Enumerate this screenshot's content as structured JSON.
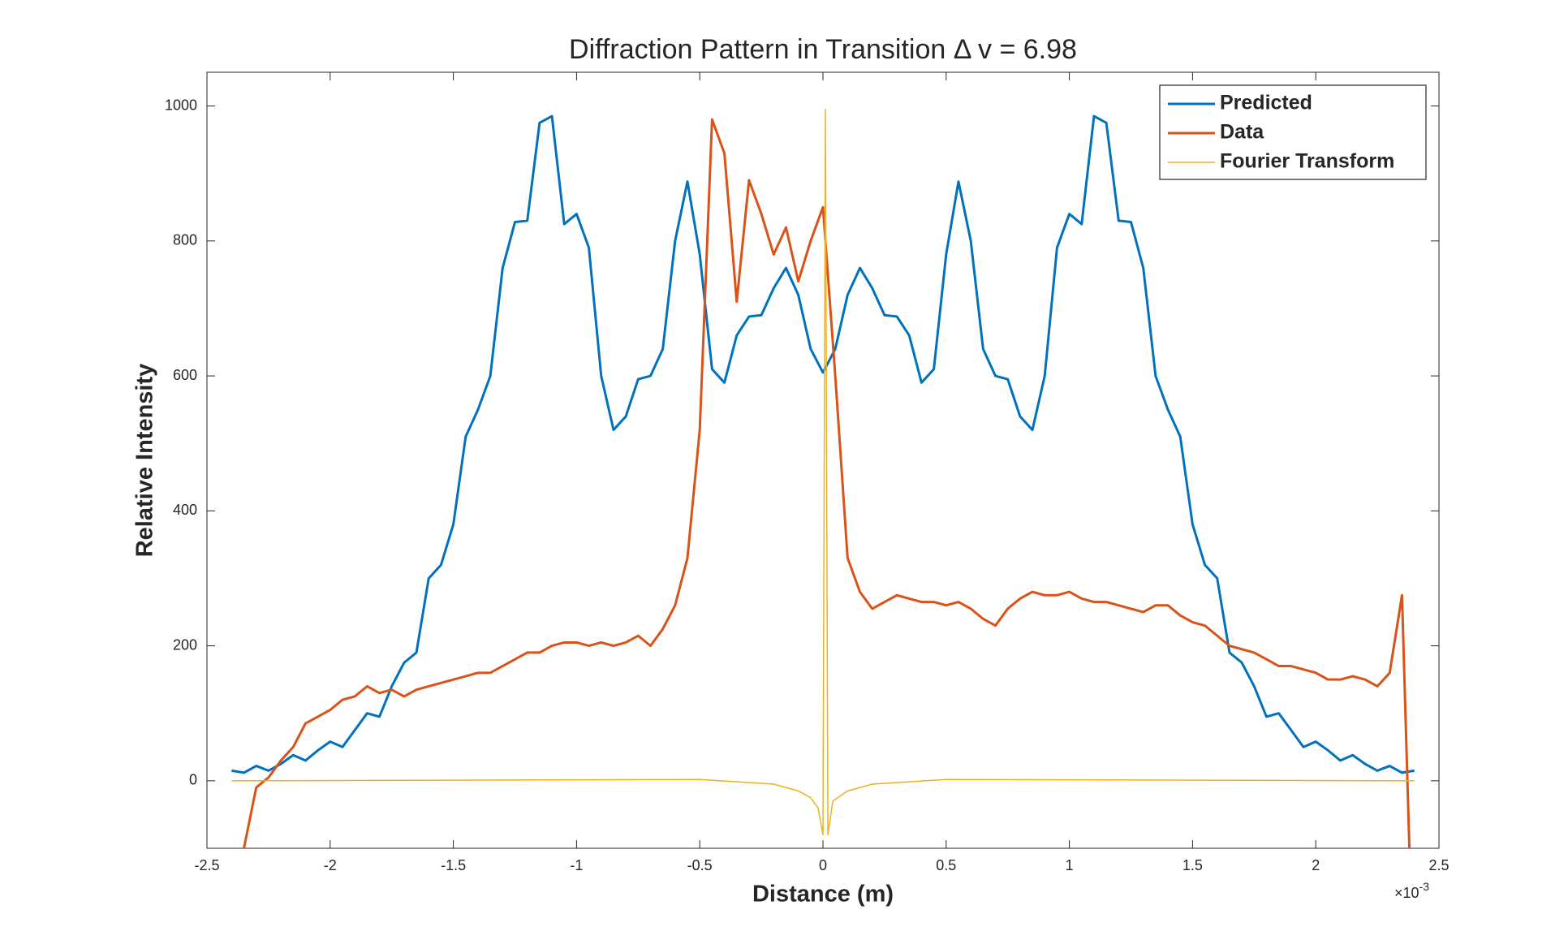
{
  "chart_data": {
    "type": "line",
    "title": "Diffraction Pattern in Transition Δ v = 6.98",
    "x_label": "Distance (m)",
    "y_label": "Relative Intensity",
    "x_multiplier": {
      "base": "×10",
      "exponent": "-3"
    },
    "xlim": [
      -2.5,
      2.5
    ],
    "xticks": [
      -2.5,
      -2,
      -1.5,
      -1,
      -0.5,
      0,
      0.5,
      1,
      1.5,
      2,
      2.5
    ],
    "ylim": [
      -100,
      1050
    ],
    "yticks": [
      0,
      200,
      400,
      600,
      800,
      1000
    ],
    "grid": false,
    "legend": "top-right",
    "series": [
      {
        "name": "Predicted",
        "color": "#0072BD",
        "width": 3,
        "x": [
          -2.4,
          -2.35,
          -2.3,
          -2.25,
          -2.2,
          -2.15,
          -2.1,
          -2.05,
          -2,
          -1.95,
          -1.9,
          -1.85,
          -1.8,
          -1.75,
          -1.7,
          -1.65,
          -1.6,
          -1.55,
          -1.5,
          -1.45,
          -1.4,
          -1.35,
          -1.3,
          -1.25,
          -1.2,
          -1.15,
          -1.1,
          -1.05,
          -1,
          -0.95,
          -0.9,
          -0.85,
          -0.8,
          -0.75,
          -0.7,
          -0.65,
          -0.6,
          -0.55,
          -0.5,
          -0.45,
          -0.4,
          -0.35,
          -0.3,
          -0.25,
          -0.2,
          -0.15,
          -0.1,
          -0.05,
          0,
          0.05,
          0.1,
          0.15,
          0.2,
          0.25,
          0.3,
          0.35,
          0.4,
          0.45,
          0.5,
          0.55,
          0.6,
          0.65,
          0.7,
          0.75,
          0.8,
          0.85,
          0.9,
          0.95,
          1,
          1.05,
          1.1,
          1.15,
          1.2,
          1.25,
          1.3,
          1.35,
          1.4,
          1.45,
          1.5,
          1.55,
          1.6,
          1.65,
          1.7,
          1.75,
          1.8,
          1.85,
          1.9,
          1.95,
          2,
          2.05,
          2.1,
          2.15,
          2.2,
          2.25,
          2.3,
          2.35,
          2.4
        ],
        "values": [
          15,
          12,
          22,
          15,
          25,
          38,
          30,
          45,
          58,
          50,
          75,
          100,
          95,
          140,
          175,
          190,
          300,
          320,
          380,
          510,
          550,
          600,
          760,
          828,
          830,
          975,
          985,
          825,
          840,
          790,
          600,
          520,
          540,
          595,
          600,
          640,
          800,
          888,
          780,
          610,
          590,
          660,
          688,
          690,
          730,
          760,
          720,
          640,
          605,
          640,
          720,
          760,
          730,
          690,
          688,
          660,
          590,
          610,
          780,
          888,
          800,
          640,
          600,
          595,
          540,
          520,
          600,
          790,
          840,
          825,
          985,
          975,
          830,
          828,
          760,
          600,
          550,
          510,
          380,
          320,
          300,
          190,
          175,
          140,
          95,
          100,
          75,
          50,
          58,
          45,
          30,
          38,
          25,
          15,
          22,
          12,
          15
        ]
      },
      {
        "name": "Data",
        "color": "#D95319",
        "width": 3,
        "x": [
          -2.35,
          -2.3,
          -2.25,
          -2.2,
          -2.15,
          -2.1,
          -2.05,
          -2,
          -1.95,
          -1.9,
          -1.85,
          -1.8,
          -1.75,
          -1.7,
          -1.65,
          -1.6,
          -1.55,
          -1.5,
          -1.45,
          -1.4,
          -1.35,
          -1.3,
          -1.25,
          -1.2,
          -1.15,
          -1.1,
          -1.05,
          -1,
          -0.95,
          -0.9,
          -0.85,
          -0.8,
          -0.75,
          -0.7,
          -0.65,
          -0.6,
          -0.55,
          -0.5,
          -0.45,
          -0.4,
          -0.35,
          -0.3,
          -0.25,
          -0.2,
          -0.15,
          -0.1,
          -0.05,
          0,
          0.05,
          0.1,
          0.15,
          0.2,
          0.25,
          0.3,
          0.35,
          0.4,
          0.45,
          0.5,
          0.55,
          0.6,
          0.65,
          0.7,
          0.75,
          0.8,
          0.85,
          0.9,
          0.95,
          1,
          1.05,
          1.1,
          1.15,
          1.2,
          1.25,
          1.3,
          1.35,
          1.4,
          1.45,
          1.5,
          1.55,
          1.6,
          1.65,
          1.7,
          1.75,
          1.8,
          1.85,
          1.9,
          1.95,
          2,
          2.05,
          2.1,
          2.15,
          2.2,
          2.25,
          2.3,
          2.35,
          2.38
        ],
        "values": [
          -100,
          -10,
          5,
          30,
          50,
          85,
          95,
          105,
          120,
          125,
          140,
          130,
          135,
          125,
          135,
          140,
          145,
          150,
          155,
          160,
          160,
          170,
          180,
          190,
          190,
          200,
          205,
          205,
          200,
          205,
          200,
          205,
          215,
          200,
          225,
          260,
          330,
          520,
          980,
          930,
          710,
          890,
          840,
          780,
          820,
          740,
          800,
          850,
          600,
          330,
          280,
          255,
          265,
          275,
          270,
          265,
          265,
          260,
          265,
          255,
          240,
          230,
          255,
          270,
          280,
          275,
          275,
          280,
          270,
          265,
          265,
          260,
          255,
          250,
          260,
          260,
          245,
          235,
          230,
          215,
          200,
          195,
          190,
          180,
          170,
          170,
          165,
          160,
          150,
          150,
          155,
          150,
          140,
          160,
          275,
          -100
        ]
      },
      {
        "name": "Fourier Transform",
        "color": "#EDB120",
        "width": 1.5,
        "x": [
          -2.4,
          -0.5,
          -0.2,
          -0.1,
          -0.05,
          -0.02,
          0,
          0.01,
          0.02,
          0.04,
          0.1,
          0.2,
          0.5,
          2.4
        ],
        "values": [
          0,
          2,
          -5,
          -15,
          -25,
          -40,
          -80,
          995,
          -80,
          -30,
          -15,
          -5,
          2,
          0
        ]
      }
    ]
  }
}
